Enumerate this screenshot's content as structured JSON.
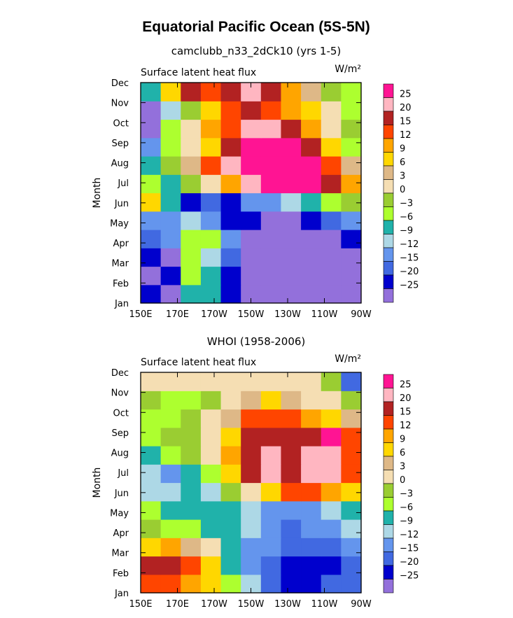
{
  "chart_data": [
    {
      "type": "heatmap",
      "main_title": "Equatorial Pacific Ocean (5S-5N)",
      "title": "camclubb_n33_2dCk10 (yrs 1-5)",
      "left_string": "Surface latent heat flux",
      "units": "W/m²",
      "ylabel": "Month",
      "x_labels": [
        "150E",
        "170E",
        "170W",
        "150W",
        "130W",
        "110W",
        "90W"
      ],
      "y_labels": [
        "Jan",
        "Feb",
        "Mar",
        "Apr",
        "May",
        "Jun",
        "Jul",
        "Aug",
        "Sep",
        "Oct",
        "Nov",
        "Dec"
      ],
      "levels": [
        "25",
        "20",
        "15",
        "12",
        "9",
        "6",
        "3",
        "0",
        "-3",
        "-6",
        "-9",
        "-12",
        "-15",
        "-20",
        "-25"
      ],
      "colors": [
        "#ff1493",
        "#ffb6c1",
        "#b22222",
        "#ff4500",
        "#ffa500",
        "#ffd700",
        "#deb887",
        "#f5deb3",
        "#9acd32",
        "#adff2f",
        "#20b2aa",
        "#add8e6",
        "#6495ed",
        "#4169e1",
        "#0000cd",
        "#9370db"
      ],
      "grid": [
        [
          14,
          15,
          10,
          10,
          14,
          15,
          15,
          15,
          15,
          15,
          15
        ],
        [
          15,
          14,
          9,
          10,
          14,
          15,
          15,
          15,
          15,
          15,
          15
        ],
        [
          14,
          15,
          9,
          11,
          13,
          15,
          15,
          15,
          15,
          15,
          15
        ],
        [
          13,
          12,
          9,
          9,
          12,
          15,
          15,
          15,
          15,
          15,
          14
        ],
        [
          12,
          12,
          11,
          12,
          14,
          14,
          15,
          15,
          14,
          13,
          12
        ],
        [
          5,
          10,
          14,
          13,
          14,
          12,
          12,
          11,
          10,
          9,
          8
        ],
        [
          9,
          10,
          8,
          7,
          4,
          1,
          0,
          0,
          0,
          2,
          4
        ],
        [
          10,
          8,
          6,
          3,
          1,
          0,
          0,
          0,
          0,
          3,
          6
        ],
        [
          12,
          9,
          7,
          5,
          2,
          0,
          0,
          0,
          2,
          5,
          9
        ],
        [
          15,
          9,
          7,
          4,
          3,
          1,
          1,
          2,
          4,
          7,
          8
        ],
        [
          15,
          11,
          8,
          5,
          3,
          2,
          3,
          4,
          5,
          7,
          9
        ],
        [
          10,
          5,
          2,
          3,
          2,
          1,
          2,
          4,
          6,
          8,
          9
        ]
      ]
    },
    {
      "type": "heatmap",
      "title": "WHOI (1958-2006)",
      "left_string": "Surface latent heat flux",
      "units": "W/m²",
      "ylabel": "Month",
      "x_labels": [
        "150E",
        "170E",
        "170W",
        "150W",
        "130W",
        "110W",
        "90W"
      ],
      "y_labels": [
        "Jan",
        "Feb",
        "Mar",
        "Apr",
        "May",
        "Jun",
        "Jul",
        "Aug",
        "Sep",
        "Oct",
        "Nov",
        "Dec"
      ],
      "levels": [
        "25",
        "20",
        "15",
        "12",
        "9",
        "6",
        "3",
        "0",
        "-3",
        "-6",
        "-9",
        "-12",
        "-15",
        "-20",
        "-25"
      ],
      "colors": [
        "#ff1493",
        "#ffb6c1",
        "#b22222",
        "#ff4500",
        "#ffa500",
        "#ffd700",
        "#deb887",
        "#f5deb3",
        "#9acd32",
        "#adff2f",
        "#20b2aa",
        "#add8e6",
        "#6495ed",
        "#4169e1",
        "#0000cd",
        "#9370db"
      ],
      "grid": [
        [
          3,
          3,
          4,
          5,
          9,
          11,
          13,
          14,
          14,
          13,
          13
        ],
        [
          2,
          2,
          3,
          5,
          10,
          12,
          13,
          14,
          14,
          14,
          13
        ],
        [
          5,
          4,
          6,
          7,
          10,
          12,
          12,
          13,
          13,
          13,
          12
        ],
        [
          8,
          9,
          9,
          10,
          10,
          11,
          12,
          13,
          12,
          12,
          11
        ],
        [
          9,
          10,
          10,
          10,
          10,
          11,
          12,
          12,
          12,
          11,
          10
        ],
        [
          11,
          11,
          10,
          11,
          8,
          7,
          5,
          3,
          3,
          4,
          5
        ],
        [
          11,
          12,
          10,
          9,
          5,
          2,
          1,
          2,
          1,
          1,
          3
        ],
        [
          10,
          9,
          8,
          7,
          4,
          2,
          1,
          2,
          1,
          1,
          3
        ],
        [
          9,
          8,
          8,
          7,
          5,
          2,
          2,
          2,
          2,
          0,
          3
        ],
        [
          9,
          9,
          8,
          7,
          6,
          3,
          3,
          3,
          4,
          5,
          6
        ],
        [
          8,
          9,
          9,
          8,
          7,
          6,
          5,
          6,
          7,
          7,
          8
        ],
        [
          7,
          7,
          7,
          7,
          7,
          7,
          7,
          7,
          7,
          8,
          13
        ]
      ]
    }
  ]
}
